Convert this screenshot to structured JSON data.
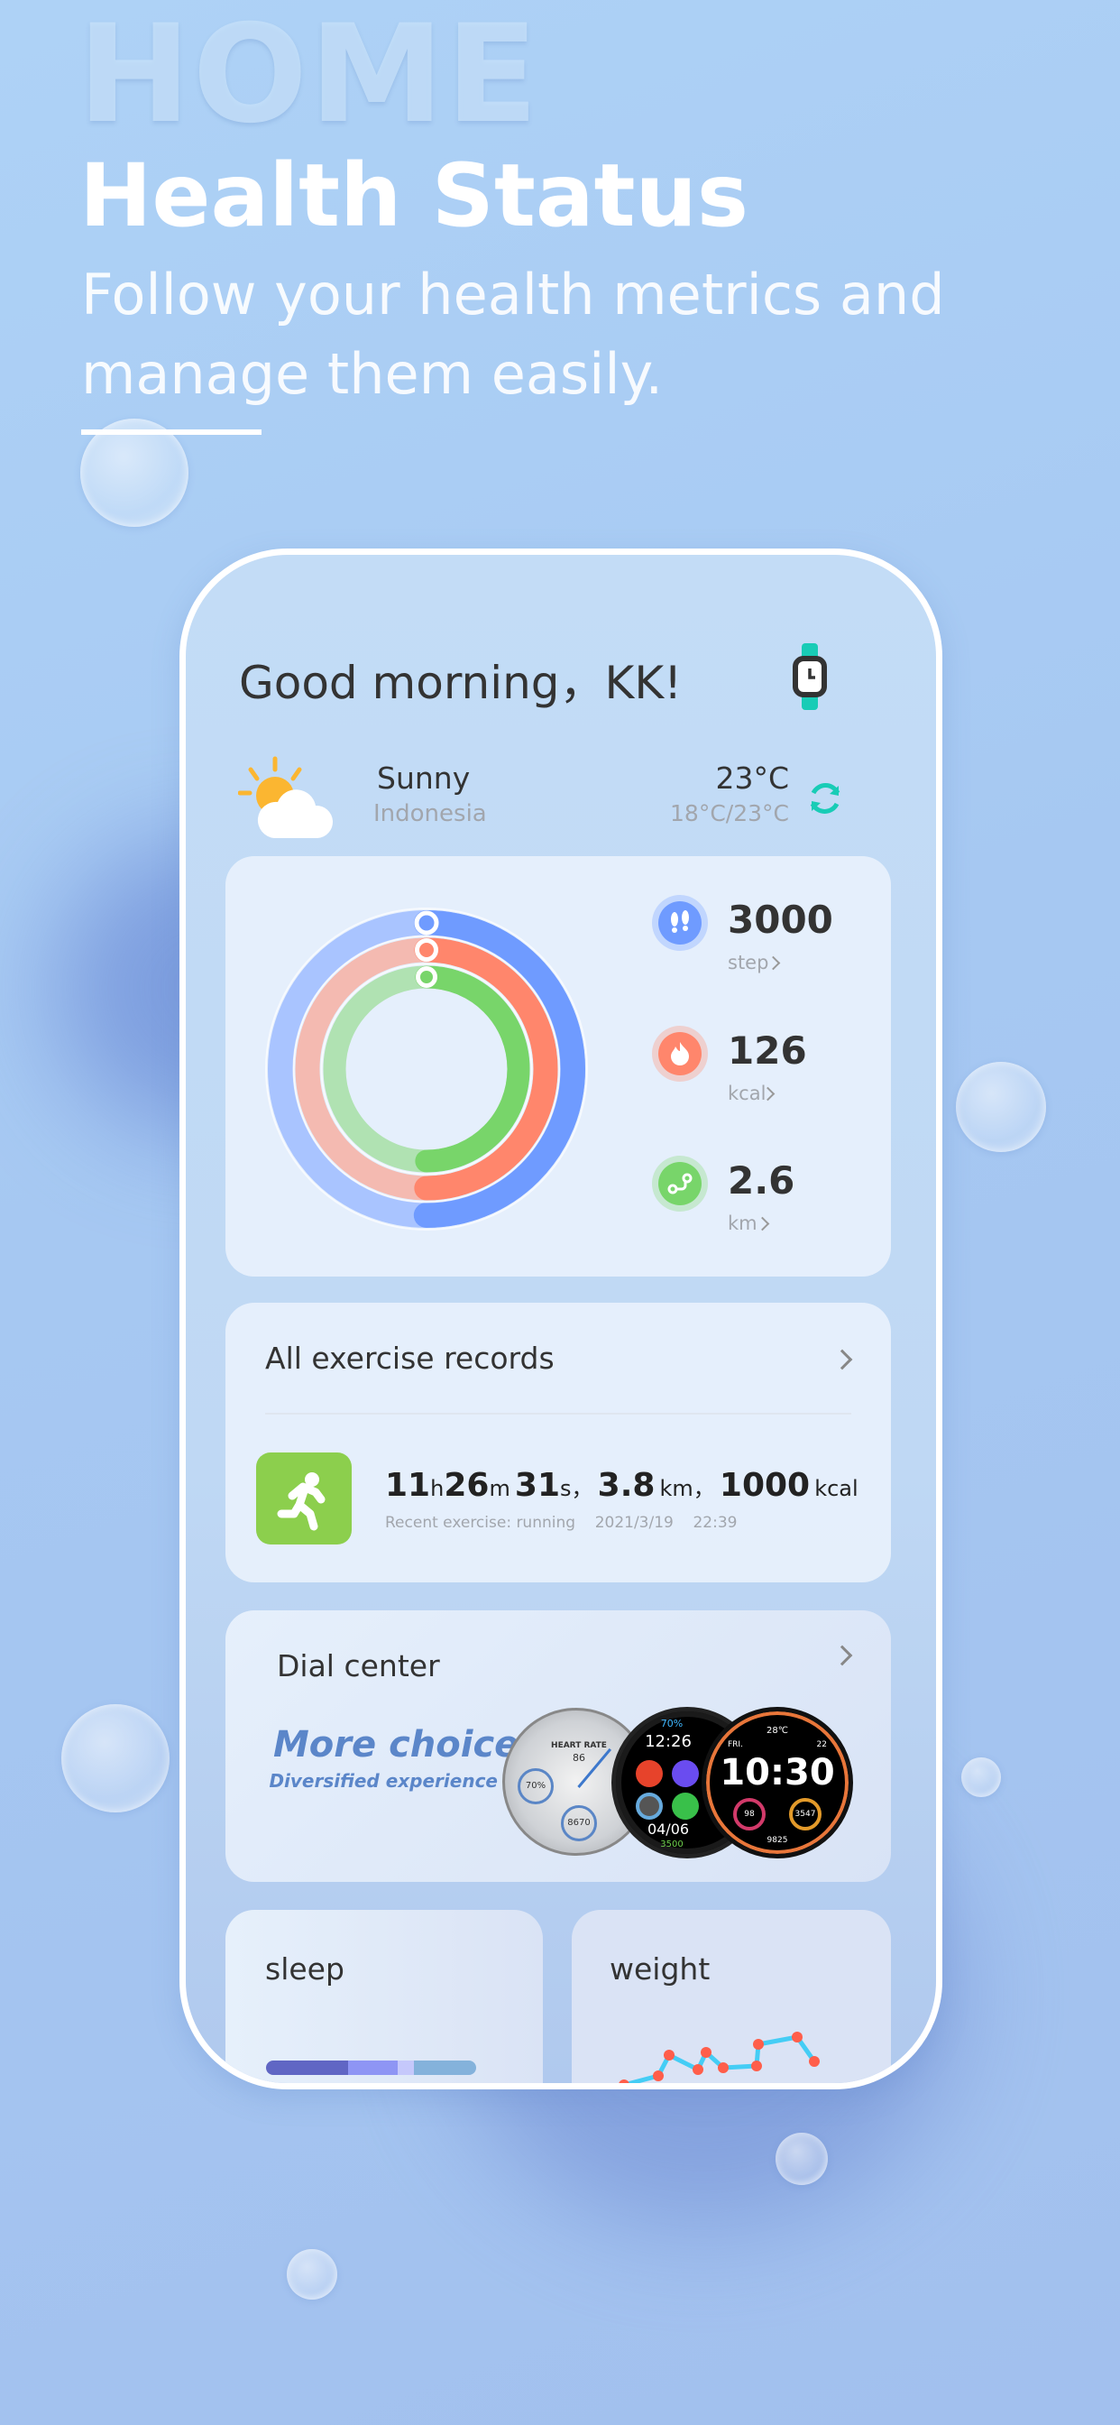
{
  "header": {
    "watermark": "HOME",
    "title": "Health Status",
    "subtitle_line1": "Follow your health metrics and",
    "subtitle_line2": "manage them easily."
  },
  "phone": {
    "greeting": "Good morning，KK!",
    "weather": {
      "condition": "Sunny",
      "location": "Indonesia",
      "temperature": "23°C",
      "range": "18°C/23°C",
      "icon": "sun-cloud-icon"
    },
    "activity": {
      "metrics": [
        {
          "value": "3000",
          "unit": "step",
          "color": "#6f9bff",
          "light": "#a9c4ff",
          "icon": "footprints-icon",
          "progress": 0.5
        },
        {
          "value": "126",
          "unit": "kcal",
          "color": "#ff866c",
          "light": "#f4bab1",
          "icon": "flame-icon",
          "progress": 0.5
        },
        {
          "value": "2.6",
          "unit": "km",
          "color": "#78d56a",
          "light": "#b0e2b2",
          "icon": "route-icon",
          "progress": 0.5
        }
      ]
    },
    "exercise": {
      "title": "All exercise records",
      "h": "11",
      "h_unit": "h",
      "m": "26",
      "m_unit": "m",
      "s": "31",
      "s_unit": "s，",
      "km": "3.8",
      "km_unit": "km，",
      "kcal": "1000",
      "kcal_unit": "kcal",
      "recent": "Recent exercise: running",
      "date": "2021/3/19",
      "time": "22:39",
      "icon_color": "#8ccf4d"
    },
    "dial": {
      "title": "Dial center",
      "headline": "More choices",
      "tagline": "Diversified experience",
      "face1": {
        "label": "HEART RATE",
        "hr": "86",
        "battery": "70%",
        "steps": "8670"
      },
      "face2": {
        "time": "12:26",
        "date": "04/06",
        "battery": "70%",
        "steps": "3500"
      },
      "face3": {
        "time": "10:30",
        "day": "FRI.",
        "date": "22",
        "temp": "28℃",
        "hr": "98",
        "kcal": "3547",
        "steps": "9825"
      }
    },
    "sleep": {
      "title": "sleep",
      "segments": [
        {
          "fraction": 0.39,
          "color": "#6066c4"
        },
        {
          "fraction": 0.235,
          "color": "#8e95f4"
        },
        {
          "fraction": 0.08,
          "color": "#c5c8fb"
        },
        {
          "fraction": 0.295,
          "color": "#84b2db"
        }
      ]
    },
    "weight": {
      "title": "weight",
      "line_color": "#44cdf5",
      "point_color": "#ff5e4a"
    }
  }
}
